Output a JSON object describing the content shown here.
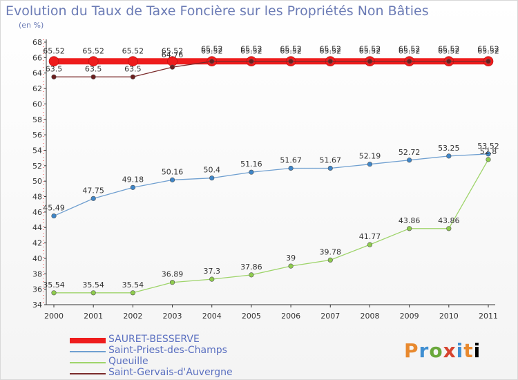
{
  "chart_data": {
    "type": "line",
    "title": "Evolution du Taux de Taxe Foncière sur les Propriétés Non Bâties",
    "ylabel": "(en %)",
    "xlabel": "",
    "categories": [
      "2000",
      "2001",
      "2002",
      "2003",
      "2004",
      "2005",
      "2006",
      "2007",
      "2008",
      "2009",
      "2010",
      "2011"
    ],
    "ylim": [
      34,
      68
    ],
    "yticks": [
      34,
      36,
      38,
      40,
      42,
      44,
      46,
      48,
      50,
      52,
      54,
      56,
      58,
      60,
      62,
      64,
      66,
      68
    ],
    "grid": false,
    "legend_position": "bottom-left",
    "series": [
      {
        "name": "SAURET-BESSERVE",
        "color": "#ee1c1c",
        "values": [
          65.52,
          65.52,
          65.52,
          65.52,
          65.52,
          65.52,
          65.52,
          65.52,
          65.52,
          65.52,
          65.52,
          65.52
        ],
        "labels": [
          "65.52",
          "65.52",
          "65.52",
          "65.52",
          "65.52",
          "65.52",
          "65.52",
          "65.52",
          "65.52",
          "65.52",
          "65.52",
          "65.52"
        ]
      },
      {
        "name": "Saint-Priest-des-Champs",
        "color": "#6f9fd0",
        "values": [
          45.49,
          47.75,
          49.18,
          50.16,
          50.4,
          51.16,
          51.67,
          51.67,
          52.19,
          52.72,
          53.25,
          53.52
        ],
        "labels": [
          "45.49",
          "47.75",
          "49.18",
          "50.16",
          "50.4",
          "51.16",
          "51.67",
          "51.67",
          "52.19",
          "52.72",
          "53.25",
          "53.52"
        ]
      },
      {
        "name": "Queuille",
        "color": "#9ed46a",
        "values": [
          35.54,
          35.54,
          35.54,
          36.89,
          37.3,
          37.86,
          39,
          39.78,
          41.77,
          43.86,
          43.86,
          52.8
        ],
        "labels": [
          "35.54",
          "35.54",
          "35.54",
          "36.89",
          "37.3",
          "37.86",
          "39",
          "39.78",
          "41.77",
          "43.86",
          "43.86",
          "52.8"
        ]
      },
      {
        "name": "Saint-Gervais-d'Auvergne",
        "color": "#7a2a2a",
        "values": [
          63.5,
          63.5,
          63.5,
          64.76,
          65.52,
          65.52,
          65.52,
          65.52,
          65.52,
          65.52,
          65.52,
          65.52
        ],
        "labels": [
          "63.5",
          "63.5",
          "63.5",
          "64.76",
          "65.52",
          "65.52",
          "65.52",
          "65.52",
          "65.52",
          "65.52",
          "65.52",
          "65.52"
        ]
      }
    ]
  },
  "brand": {
    "logo_letters": [
      "P",
      "r",
      "o",
      "x",
      "i",
      "t",
      "i"
    ]
  }
}
